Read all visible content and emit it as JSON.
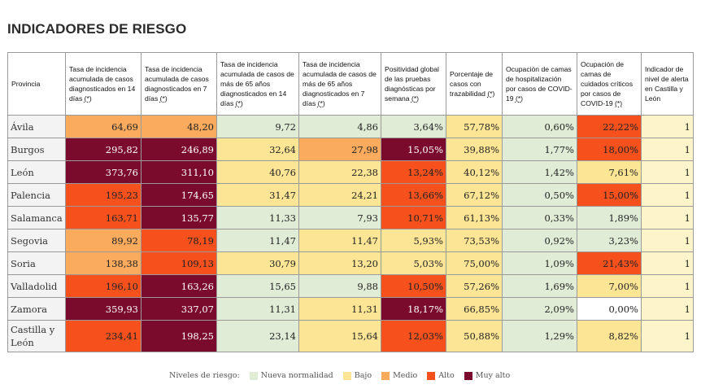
{
  "title": "INDICADORES DE RIESGO",
  "headers": {
    "provincia": "Provincia",
    "h1": "Tasa de incidencia acumulada de casos diagnosticados en 14 días",
    "h2": "Tasa de incidencia acumulada de casos diagnosticados en 7 días",
    "h3": "Tasa de incidencia acumulada de casos de más de 65 años diagnosticados en 14 días",
    "h4": "Tasa de incidencia acumulada de casos de más de 65 años diagnosticados en 7 días",
    "h5": "Positividad global de las pruebas diagnósticas por semana",
    "h6": "Porcentaje de casos con trazabilidad",
    "h7": "Ocupación de camas de hospitalización por casos de COVID-19",
    "h8": "Ocupación de camas de cuidados críticos por casos de COVID-19",
    "h9": "Indicador de nivel de alerta en Castilla y León",
    "asterisk": "(*)"
  },
  "rows": [
    {
      "prov": "Ávila",
      "v": [
        "64,69",
        "48,20",
        "9,72",
        "4,86",
        "3,64%",
        "57,78%",
        "0,60%",
        "22,22%",
        "1"
      ]
    },
    {
      "prov": "Burgos",
      "v": [
        "295,82",
        "246,89",
        "32,64",
        "27,98",
        "15,05%",
        "39,88%",
        "1,77%",
        "18,00%",
        "1"
      ]
    },
    {
      "prov": "León",
      "v": [
        "373,76",
        "311,10",
        "40,76",
        "22,38",
        "13,24%",
        "40,12%",
        "1,42%",
        "7,61%",
        "1"
      ]
    },
    {
      "prov": "Palencia",
      "v": [
        "195,23",
        "174,65",
        "31,47",
        "24,21",
        "13,66%",
        "67,12%",
        "0,50%",
        "15,00%",
        "1"
      ]
    },
    {
      "prov": "Salamanca",
      "v": [
        "163,71",
        "135,77",
        "11,33",
        "7,93",
        "10,71%",
        "61,13%",
        "0,33%",
        "1,89%",
        "1"
      ]
    },
    {
      "prov": "Segovia",
      "v": [
        "89,92",
        "78,19",
        "11,47",
        "11,47",
        "5,93%",
        "73,53%",
        "0,92%",
        "3,23%",
        "1"
      ]
    },
    {
      "prov": "Soria",
      "v": [
        "138,38",
        "109,13",
        "30,79",
        "13,20",
        "5,03%",
        "75,00%",
        "1,09%",
        "21,43%",
        "1"
      ]
    },
    {
      "prov": "Valladolid",
      "v": [
        "196,10",
        "163,26",
        "15,65",
        "9,88",
        "10,50%",
        "57,26%",
        "1,69%",
        "7,00%",
        "1"
      ]
    },
    {
      "prov": "Zamora",
      "v": [
        "359,93",
        "337,07",
        "11,31",
        "11,31",
        "18,17%",
        "66,85%",
        "2,09%",
        "0,00%",
        "1"
      ]
    },
    {
      "prov": "Castilla y León",
      "v": [
        "234,41",
        "198,25",
        "23,14",
        "15,64",
        "12,03%",
        "50,88%",
        "1,29%",
        "8,82%",
        "1"
      ]
    }
  ],
  "levels": [
    [
      "m",
      "m",
      "n",
      "n",
      "n",
      "b",
      "n",
      "a",
      "1"
    ],
    [
      "ma",
      "ma",
      "b",
      "m",
      "ma",
      "b",
      "n",
      "a",
      "1"
    ],
    [
      "ma",
      "ma",
      "b",
      "b",
      "a",
      "b",
      "n",
      "b",
      "1"
    ],
    [
      "a",
      "ma",
      "b",
      "b",
      "a",
      "b",
      "n",
      "a",
      "1"
    ],
    [
      "a",
      "ma",
      "n",
      "n",
      "a",
      "b",
      "n",
      "n",
      "1"
    ],
    [
      "m",
      "a",
      "n",
      "b",
      "b",
      "b",
      "n",
      "n",
      "1"
    ],
    [
      "m",
      "a",
      "b",
      "b",
      "b",
      "b",
      "n",
      "a",
      "1"
    ],
    [
      "a",
      "ma",
      "n",
      "n",
      "a",
      "b",
      "n",
      "b",
      "1"
    ],
    [
      "ma",
      "ma",
      "n",
      "b",
      "ma",
      "b",
      "n",
      "w",
      "1"
    ],
    [
      "a",
      "ma",
      "n",
      "b",
      "a",
      "b",
      "n",
      "b",
      "1"
    ]
  ],
  "colors": {
    "nueva_normalidad": "#e0ecd6",
    "bajo": "#fde596",
    "medio": "#fbab5e",
    "alto": "#f6511d",
    "muy_alto": "#7b0b2d"
  },
  "legend": {
    "label": "Niveles de riesgo:",
    "items": [
      "Nueva normalidad",
      "Bajo",
      "Medio",
      "Alto",
      "Muy alto"
    ]
  }
}
